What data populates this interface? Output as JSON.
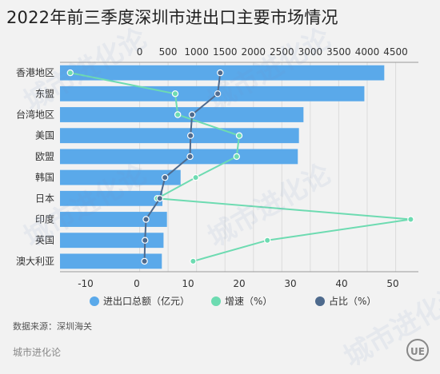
{
  "title": "2022年前三季度深圳市进出口主要市场情况",
  "source": "数据来源：深圳海关",
  "brand": "城市进化论",
  "logo_text": "UE",
  "watermark": "城市进化论",
  "chart_data": {
    "type": "bar",
    "categories": [
      "香港地区",
      "东盟",
      "台湾地区",
      "美国",
      "欧盟",
      "韩国",
      "日本",
      "印度",
      "英国",
      "澳大利亚"
    ],
    "series": [
      {
        "name": "进出口总额（亿元）",
        "kind": "bar",
        "axis": "top",
        "color": "#5aa9ea",
        "values": [
          4300,
          3950,
          2880,
          2800,
          2780,
          720,
          400,
          480,
          420,
          390
        ]
      },
      {
        "name": "增速（%）",
        "kind": "line",
        "axis": "bottom",
        "color": "#6ddbb1",
        "values": [
          -13,
          7.5,
          8,
          20,
          19.5,
          11.5,
          4,
          53.5,
          25.5,
          11
        ]
      },
      {
        "name": "占比（%）",
        "kind": "line",
        "axis": "bottom",
        "color": "#4e6a8d",
        "values": [
          16.3,
          15.8,
          10.8,
          10.5,
          10.4,
          5.5,
          4.5,
          1.8,
          1.6,
          1.5
        ]
      }
    ],
    "x_top": {
      "ticks": [
        0,
        500,
        1000,
        1500,
        2000,
        2500,
        3000,
        3500,
        4000,
        4500
      ],
      "range": [
        -1400,
        4900
      ]
    },
    "x_bottom": {
      "ticks": [
        -10,
        0,
        10,
        20,
        30,
        40,
        50
      ],
      "range": [
        -15,
        55
      ]
    },
    "grid": true,
    "legend_position": "bottom"
  }
}
